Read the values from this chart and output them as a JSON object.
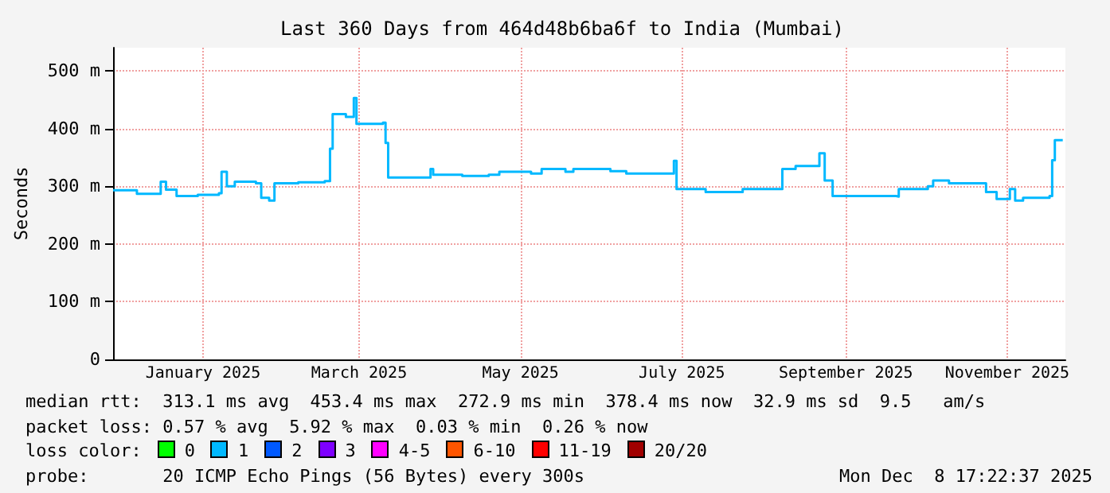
{
  "chart_data": {
    "type": "step",
    "title": "Last 360 Days from 464d48b6ba6f to India (Mumbai)",
    "ylabel": "Seconds",
    "x": [
      "2024-12-13",
      "2024-12-22",
      "2024-12-31",
      "2025-01-02",
      "2025-01-06",
      "2025-01-14",
      "2025-01-22",
      "2025-01-23",
      "2025-01-25",
      "2025-01-28",
      "2025-02-05",
      "2025-02-07",
      "2025-02-10",
      "2025-02-12",
      "2025-02-21",
      "2025-03-03",
      "2025-03-05",
      "2025-03-06",
      "2025-03-11",
      "2025-03-14",
      "2025-03-15",
      "2025-03-25",
      "2025-03-26",
      "2025-03-27",
      "2025-04-06",
      "2025-04-12",
      "2025-04-13",
      "2025-04-24",
      "2025-05-04",
      "2025-05-08",
      "2025-05-20",
      "2025-05-24",
      "2025-06-02",
      "2025-06-05",
      "2025-06-19",
      "2025-06-25",
      "2025-07-01",
      "2025-07-13",
      "2025-07-14",
      "2025-07-25",
      "2025-08-08",
      "2025-08-22",
      "2025-08-23",
      "2025-08-28",
      "2025-09-05",
      "2025-09-06",
      "2025-09-08",
      "2025-09-11",
      "2025-10-05",
      "2025-10-06",
      "2025-10-17",
      "2025-10-19",
      "2025-10-25",
      "2025-11-02",
      "2025-11-08",
      "2025-11-12",
      "2025-11-17",
      "2025-11-19",
      "2025-11-22",
      "2025-12-02",
      "2025-12-03",
      "2025-12-04",
      "2025-12-07"
    ],
    "series": [
      {
        "color": "#00b8ff",
        "values": [
          293,
          287,
          308,
          294,
          283,
          285,
          288,
          325,
          300,
          308,
          305,
          280,
          275,
          305,
          307,
          309,
          365,
          425,
          420,
          453,
          408,
          410,
          375,
          315,
          315,
          330,
          320,
          318,
          320,
          325,
          322,
          330,
          325,
          330,
          326,
          322,
          322,
          344,
          295,
          290,
          295,
          295,
          330,
          335,
          335,
          357,
          310,
          283,
          282,
          295,
          300,
          310,
          305,
          305,
          290,
          278,
          295,
          275,
          280,
          283,
          345,
          380,
          380
        ]
      }
    ],
    "xlim": [
      "2024-12-13",
      "2025-12-08"
    ],
    "xticks": [
      {
        "value": "2025-01-16",
        "label": "January 2025"
      },
      {
        "value": "2025-03-16",
        "label": "March 2025"
      },
      {
        "value": "2025-05-16",
        "label": "May 2025"
      },
      {
        "value": "2025-07-16",
        "label": "July 2025"
      },
      {
        "value": "2025-09-16",
        "label": "September 2025"
      },
      {
        "value": "2025-11-16",
        "label": "November 2025"
      }
    ],
    "ylim": [
      0,
      540
    ],
    "yticks": [
      0,
      {
        "value": 100,
        "label": "100 m"
      },
      {
        "value": 200,
        "label": "200 m"
      },
      {
        "value": 300,
        "label": "300 m"
      },
      {
        "value": 400,
        "label": "400 m"
      },
      {
        "value": 500,
        "label": "500 m"
      }
    ],
    "grid": true,
    "marker": "none",
    "annotations": [
      "median rtt:  313.1 ms avg  453.4 ms max  272.9 ms min  378.4 ms now  32.9 ms sd  9.5   am/s",
      "packet loss: 0.57 % avg  5.92 % max  0.03 % min  0.26 % now",
      "loss color:",
      "0",
      "1",
      "2",
      "3",
      "4-5",
      "6-10",
      "11-19",
      "20/20",
      "probe:       20 ICMP Echo Pings (56 Bytes) every 300s",
      "Mon Dec  8 17:22:37 2025"
    ]
  }
}
